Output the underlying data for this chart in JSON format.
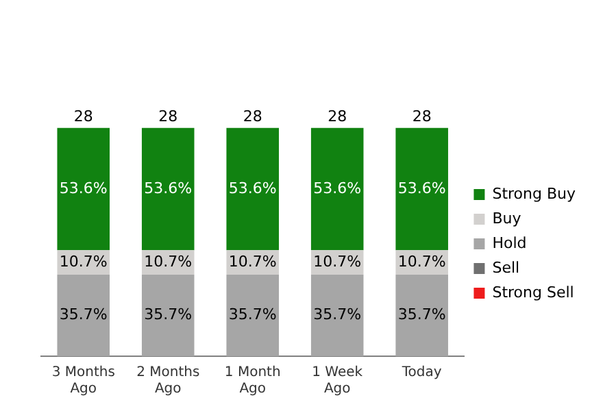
{
  "chart_data": {
    "type": "bar",
    "stacked": true,
    "categories": [
      "3 Months Ago",
      "2 Months Ago",
      "1 Month Ago",
      "1 Week Ago",
      "Today"
    ],
    "series": [
      {
        "name": "Strong Sell",
        "color": "#ee1c1c",
        "values": [
          null,
          null,
          null,
          null,
          null
        ],
        "value_labels": [
          null,
          null,
          null,
          null,
          null
        ]
      },
      {
        "name": "Sell",
        "color": "#707070",
        "values": [
          null,
          null,
          null,
          null,
          null
        ],
        "value_labels": [
          null,
          null,
          null,
          null,
          null
        ]
      },
      {
        "name": "Hold",
        "color": "#a6a6a6",
        "values": [
          35.7,
          35.7,
          35.7,
          35.7,
          35.7
        ],
        "value_labels": [
          "35.7%",
          "35.7%",
          "35.7%",
          "35.7%",
          "35.7%"
        ]
      },
      {
        "name": "Buy",
        "color": "#d2d0ce",
        "values": [
          10.7,
          10.7,
          10.7,
          10.7,
          10.7
        ],
        "value_labels": [
          "10.7%",
          "10.7%",
          "10.7%",
          "10.7%",
          "10.7%"
        ]
      },
      {
        "name": "Strong Buy",
        "color": "#118211",
        "values": [
          53.6,
          53.6,
          53.6,
          53.6,
          53.6
        ],
        "value_labels": [
          "53.6%",
          "53.6%",
          "53.6%",
          "53.6%",
          "53.6%"
        ]
      }
    ],
    "annotations": [
      {
        "text": "28",
        "x": "3 Months Ago",
        "y": 100
      },
      {
        "text": "28",
        "x": "2 Months Ago",
        "y": 100
      },
      {
        "text": "28",
        "x": "1 Month Ago",
        "y": 100
      },
      {
        "text": "28",
        "x": "1 Week Ago",
        "y": 100
      },
      {
        "text": "28",
        "x": "Today",
        "y": 100
      }
    ],
    "legend": "right",
    "grid": false,
    "tick_labels": "x"
  }
}
